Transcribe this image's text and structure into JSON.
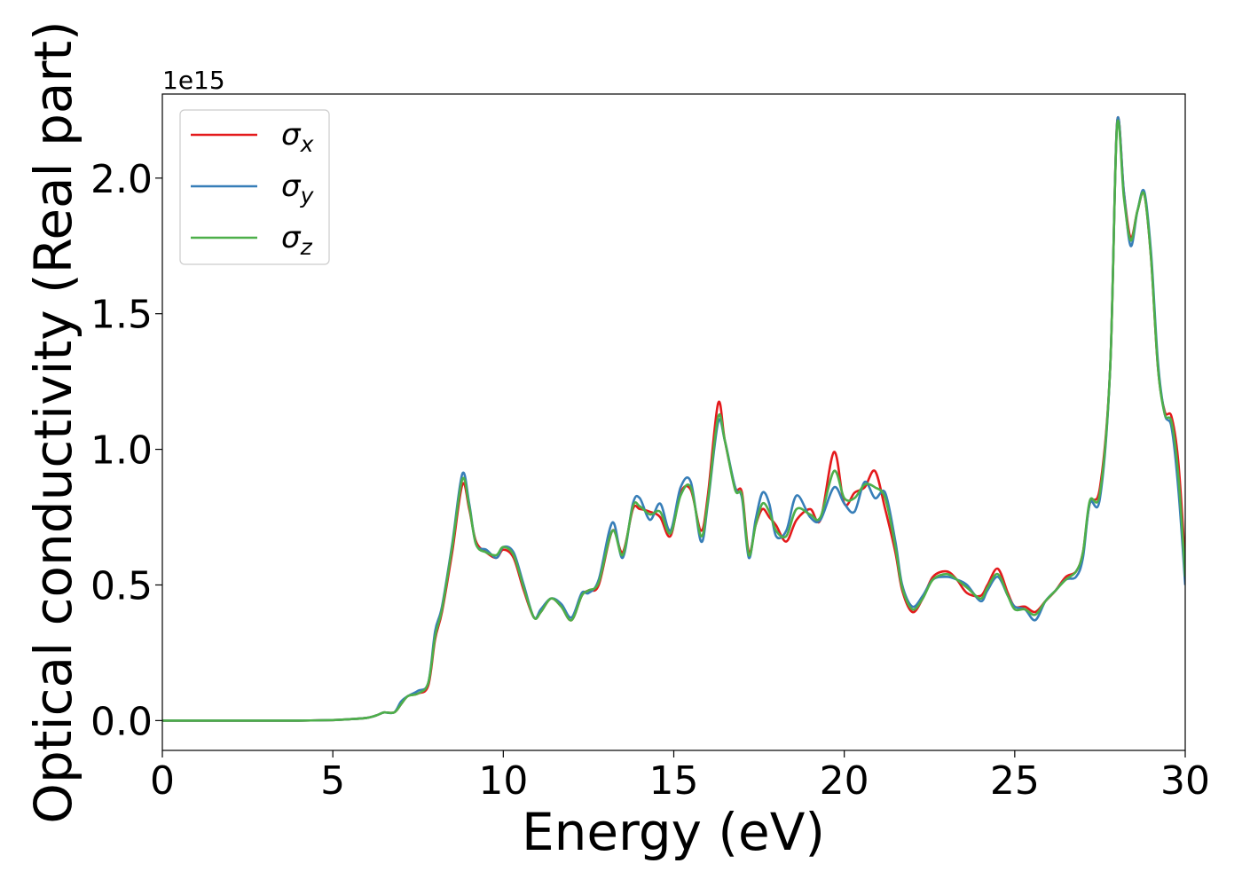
{
  "chart_data": {
    "type": "line",
    "xlabel": "Energy (eV)",
    "ylabel": "Optical conductivity (Real part)",
    "offset_text": "1e15",
    "xlim": [
      0,
      30
    ],
    "ylim": [
      -0.11,
      2.31
    ],
    "x_ticks": [
      0,
      5,
      10,
      15,
      20,
      25,
      30
    ],
    "x_tick_labels": [
      "0",
      "5",
      "10",
      "15",
      "20",
      "25",
      "30"
    ],
    "y_ticks": [
      0.0,
      0.5,
      1.0,
      1.5,
      2.0
    ],
    "y_tick_labels": [
      "0.0",
      "0.5",
      "1.0",
      "1.5",
      "2.0"
    ],
    "grid": false,
    "legend_position": "top-left",
    "x": [
      0,
      1,
      2,
      3,
      4,
      5,
      5.5,
      6,
      6.3,
      6.5,
      6.8,
      7,
      7.2,
      7.5,
      7.8,
      8,
      8.2,
      8.5,
      8.8,
      9,
      9.2,
      9.5,
      9.8,
      10,
      10.3,
      10.6,
      10.9,
      11.1,
      11.4,
      11.7,
      12,
      12.3,
      12.5,
      12.8,
      13.2,
      13.5,
      13.8,
      14,
      14.3,
      14.6,
      14.9,
      15.2,
      15.5,
      15.8,
      16,
      16.3,
      16.5,
      16.8,
      17,
      17.2,
      17.4,
      17.6,
      17.8,
      18,
      18.3,
      18.6,
      19,
      19.3,
      19.7,
      20,
      20.3,
      20.6,
      20.9,
      21.2,
      21.5,
      21.7,
      22,
      22.3,
      22.6,
      23,
      23.3,
      23.6,
      24,
      24.2,
      24.5,
      24.8,
      25,
      25.3,
      25.6,
      25.9,
      26.2,
      26.5,
      26.8,
      27,
      27.2,
      27.5,
      27.8,
      28,
      28.2,
      28.4,
      28.6,
      28.8,
      29,
      29.2,
      29.4,
      29.6,
      29.8,
      30
    ],
    "series": [
      {
        "name": "σx",
        "sub": "x",
        "color": "#e41a1c",
        "values": [
          0,
          0,
          0,
          0,
          0,
          0.002,
          0.005,
          0.01,
          0.02,
          0.03,
          0.03,
          0.06,
          0.09,
          0.1,
          0.13,
          0.3,
          0.4,
          0.62,
          0.87,
          0.78,
          0.66,
          0.62,
          0.6,
          0.63,
          0.6,
          0.48,
          0.38,
          0.4,
          0.45,
          0.42,
          0.37,
          0.46,
          0.48,
          0.5,
          0.7,
          0.62,
          0.78,
          0.78,
          0.77,
          0.75,
          0.68,
          0.84,
          0.85,
          0.7,
          0.83,
          1.17,
          1.03,
          0.86,
          0.84,
          0.62,
          0.72,
          0.78,
          0.75,
          0.72,
          0.66,
          0.74,
          0.78,
          0.74,
          0.99,
          0.8,
          0.84,
          0.86,
          0.92,
          0.78,
          0.62,
          0.48,
          0.4,
          0.45,
          0.53,
          0.55,
          0.52,
          0.47,
          0.46,
          0.5,
          0.56,
          0.47,
          0.42,
          0.42,
          0.4,
          0.44,
          0.48,
          0.53,
          0.55,
          0.62,
          0.8,
          0.86,
          1.3,
          2.2,
          1.95,
          1.78,
          1.88,
          1.94,
          1.7,
          1.3,
          1.14,
          1.12,
          0.95,
          0.58
        ]
      },
      {
        "name": "σy",
        "sub": "y",
        "color": "#377eb8",
        "values": [
          0,
          0,
          0,
          0,
          0,
          0.002,
          0.005,
          0.01,
          0.02,
          0.03,
          0.03,
          0.07,
          0.09,
          0.11,
          0.14,
          0.33,
          0.42,
          0.65,
          0.91,
          0.8,
          0.65,
          0.63,
          0.6,
          0.64,
          0.62,
          0.5,
          0.38,
          0.41,
          0.45,
          0.43,
          0.38,
          0.47,
          0.47,
          0.52,
          0.73,
          0.6,
          0.8,
          0.82,
          0.74,
          0.8,
          0.7,
          0.86,
          0.88,
          0.66,
          0.8,
          1.1,
          1.03,
          0.86,
          0.82,
          0.6,
          0.74,
          0.84,
          0.8,
          0.68,
          0.7,
          0.83,
          0.75,
          0.74,
          0.86,
          0.8,
          0.77,
          0.88,
          0.82,
          0.84,
          0.66,
          0.5,
          0.42,
          0.46,
          0.52,
          0.53,
          0.52,
          0.5,
          0.44,
          0.48,
          0.53,
          0.46,
          0.42,
          0.41,
          0.37,
          0.44,
          0.48,
          0.52,
          0.53,
          0.6,
          0.8,
          0.82,
          1.3,
          2.2,
          1.95,
          1.75,
          1.88,
          1.95,
          1.72,
          1.32,
          1.13,
          1.08,
          0.85,
          0.5
        ]
      },
      {
        "name": "σz",
        "sub": "z",
        "color": "#4daf4a",
        "values": [
          0,
          0,
          0,
          0,
          0,
          0.002,
          0.005,
          0.01,
          0.02,
          0.03,
          0.03,
          0.06,
          0.09,
          0.1,
          0.14,
          0.31,
          0.41,
          0.64,
          0.89,
          0.79,
          0.65,
          0.62,
          0.61,
          0.64,
          0.61,
          0.49,
          0.38,
          0.4,
          0.45,
          0.42,
          0.37,
          0.46,
          0.48,
          0.51,
          0.7,
          0.61,
          0.79,
          0.79,
          0.76,
          0.77,
          0.69,
          0.83,
          0.86,
          0.68,
          0.81,
          1.12,
          1.03,
          0.85,
          0.83,
          0.61,
          0.72,
          0.8,
          0.77,
          0.7,
          0.68,
          0.78,
          0.76,
          0.75,
          0.92,
          0.82,
          0.82,
          0.87,
          0.86,
          0.82,
          0.64,
          0.49,
          0.41,
          0.45,
          0.52,
          0.54,
          0.52,
          0.49,
          0.45,
          0.49,
          0.54,
          0.46,
          0.41,
          0.41,
          0.39,
          0.44,
          0.48,
          0.52,
          0.55,
          0.62,
          0.81,
          0.84,
          1.3,
          2.19,
          1.93,
          1.77,
          1.88,
          1.94,
          1.7,
          1.3,
          1.13,
          1.1,
          0.9,
          0.53
        ]
      }
    ]
  }
}
